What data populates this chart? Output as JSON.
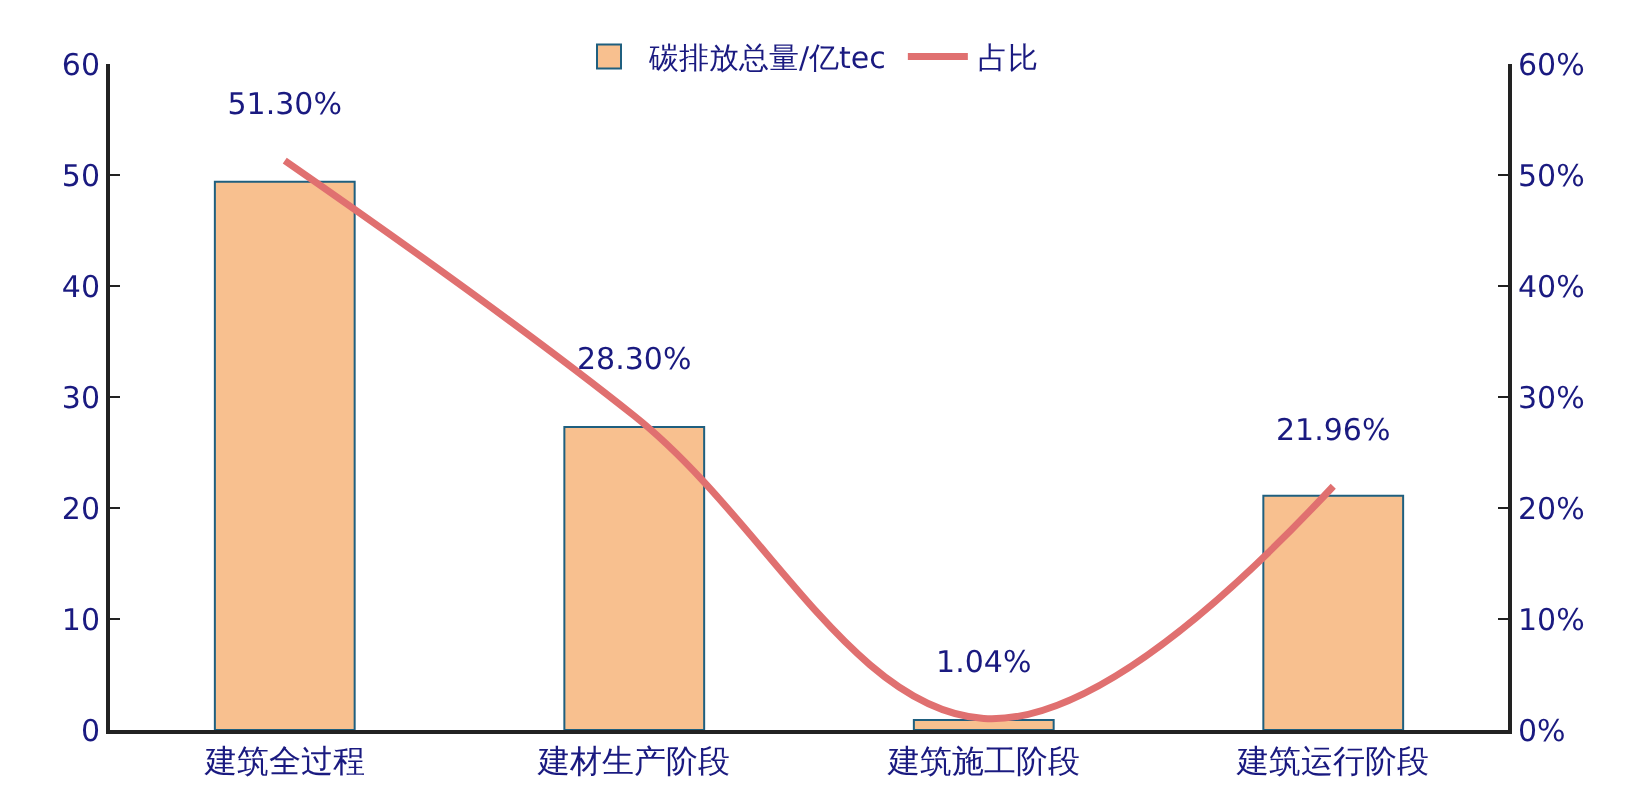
{
  "chart_data": {
    "type": "bar",
    "categories": [
      "建筑全过程",
      "建材生产阶段",
      "建筑施工阶段",
      "建筑运行阶段"
    ],
    "series": [
      {
        "name": "碳排放总量/亿tec",
        "color": "#f8c08f",
        "values": [
          49.4,
          27.3,
          0.9,
          21.1
        ]
      },
      {
        "name": "占比",
        "type": "line",
        "axis": "y2",
        "color": "#e07070",
        "values": [
          51.3,
          28.3,
          1.04,
          21.96
        ],
        "value_labels": [
          "51.30%",
          "28.30%",
          "1.04%",
          "21.96%"
        ]
      }
    ],
    "ylim": [
      0,
      60
    ],
    "yticks": [
      0,
      10,
      20,
      30,
      40,
      50,
      60
    ],
    "y2lim": [
      0,
      60
    ],
    "y2ticks": [
      {
        "value": 0,
        "label": "0%"
      },
      {
        "value": 10,
        "label": "10%"
      },
      {
        "value": 20,
        "label": "20%"
      },
      {
        "value": 30,
        "label": "30%"
      },
      {
        "value": 40,
        "label": "40%"
      },
      {
        "value": 50,
        "label": "50%"
      },
      {
        "value": 60,
        "label": "60%"
      }
    ],
    "grid": false,
    "legend": "top",
    "marker": "none",
    "line_style": "solid"
  }
}
